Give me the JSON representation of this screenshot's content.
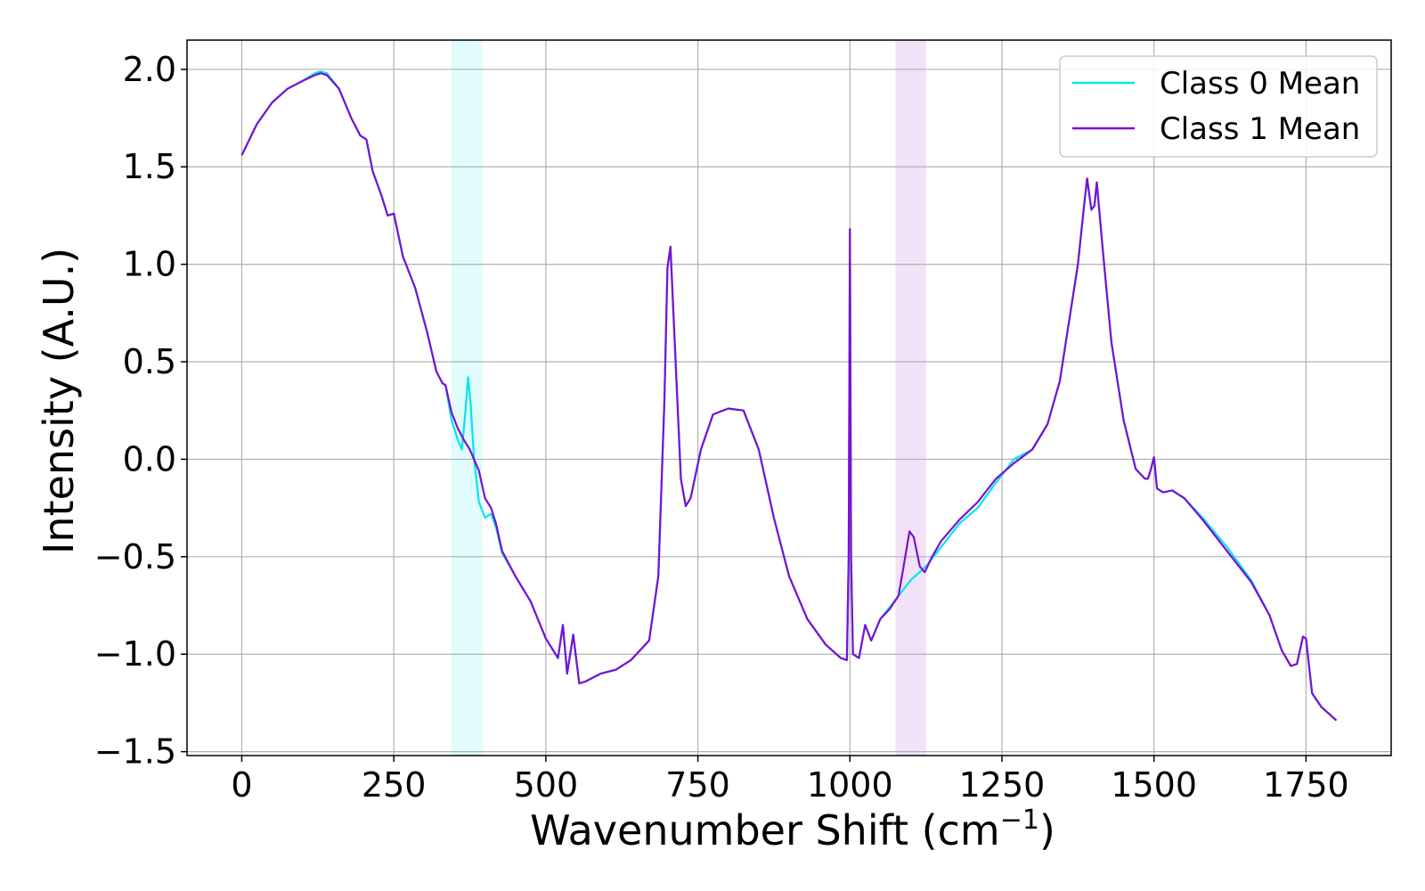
{
  "chart_data": {
    "type": "line",
    "title": "",
    "xlabel": "Wavenumber Shift (cm",
    "xlabel_sup": "−1",
    "xlabel_close": ")",
    "ylabel": "Intensity (A.U.)",
    "xlim": [
      -90,
      1890
    ],
    "ylim": [
      -1.52,
      2.15
    ],
    "xticks": [
      0,
      250,
      500,
      750,
      1000,
      1250,
      1500,
      1750
    ],
    "xtick_labels": [
      "0",
      "250",
      "500",
      "750",
      "1000",
      "1250",
      "1500",
      "1750"
    ],
    "yticks": [
      -1.5,
      -1.0,
      -0.5,
      0.0,
      0.5,
      1.0,
      1.5,
      2.0
    ],
    "ytick_labels": [
      "−1.5",
      "−1.0",
      "−0.5",
      "0.0",
      "0.5",
      "1.0",
      "1.5",
      "2.0"
    ],
    "grid": true,
    "legend_position": "top-right",
    "highlight_bands": [
      {
        "x0": 345,
        "x1": 395,
        "color": "#e0fcfc"
      },
      {
        "x0": 1075,
        "x1": 1125,
        "color": "#f1e2f8"
      }
    ],
    "series": [
      {
        "name": "Class 0 Mean",
        "color": "#00e5ee",
        "points": [
          [
            0,
            1.56
          ],
          [
            25,
            1.72
          ],
          [
            50,
            1.83
          ],
          [
            75,
            1.9
          ],
          [
            100,
            1.94
          ],
          [
            120,
            1.98
          ],
          [
            130,
            1.99
          ],
          [
            140,
            1.98
          ],
          [
            160,
            1.9
          ],
          [
            180,
            1.75
          ],
          [
            195,
            1.66
          ],
          [
            205,
            1.64
          ],
          [
            215,
            1.48
          ],
          [
            230,
            1.35
          ],
          [
            240,
            1.25
          ],
          [
            250,
            1.26
          ],
          [
            265,
            1.04
          ],
          [
            285,
            0.88
          ],
          [
            305,
            0.65
          ],
          [
            320,
            0.45
          ],
          [
            330,
            0.39
          ],
          [
            335,
            0.38
          ],
          [
            345,
            0.2
          ],
          [
            355,
            0.1
          ],
          [
            362,
            0.05
          ],
          [
            368,
            0.25
          ],
          [
            372,
            0.42
          ],
          [
            376,
            0.3
          ],
          [
            382,
            0.0
          ],
          [
            390,
            -0.22
          ],
          [
            400,
            -0.3
          ],
          [
            410,
            -0.28
          ],
          [
            418,
            -0.35
          ],
          [
            428,
            -0.48
          ],
          [
            450,
            -0.6
          ],
          [
            475,
            -0.73
          ],
          [
            500,
            -0.92
          ],
          [
            520,
            -1.02
          ],
          [
            528,
            -0.85
          ],
          [
            535,
            -1.1
          ],
          [
            545,
            -0.9
          ],
          [
            555,
            -1.15
          ],
          [
            565,
            -1.14
          ],
          [
            590,
            -1.1
          ],
          [
            615,
            -1.08
          ],
          [
            640,
            -1.03
          ],
          [
            670,
            -0.93
          ],
          [
            685,
            -0.6
          ],
          [
            695,
            0.3
          ],
          [
            700,
            0.98
          ],
          [
            705,
            1.09
          ],
          [
            712,
            0.6
          ],
          [
            722,
            -0.1
          ],
          [
            730,
            -0.24
          ],
          [
            738,
            -0.2
          ],
          [
            755,
            0.05
          ],
          [
            775,
            0.23
          ],
          [
            800,
            0.26
          ],
          [
            825,
            0.25
          ],
          [
            850,
            0.05
          ],
          [
            875,
            -0.3
          ],
          [
            900,
            -0.6
          ],
          [
            930,
            -0.82
          ],
          [
            960,
            -0.95
          ],
          [
            985,
            -1.02
          ],
          [
            995,
            -1.03
          ],
          [
            998,
            -0.5
          ],
          [
            1000,
            1.18
          ],
          [
            1002,
            -0.5
          ],
          [
            1005,
            -1.0
          ],
          [
            1015,
            -1.02
          ],
          [
            1025,
            -0.85
          ],
          [
            1035,
            -0.93
          ],
          [
            1050,
            -0.82
          ],
          [
            1075,
            -0.72
          ],
          [
            1100,
            -0.62
          ],
          [
            1125,
            -0.55
          ],
          [
            1150,
            -0.45
          ],
          [
            1180,
            -0.33
          ],
          [
            1210,
            -0.25
          ],
          [
            1240,
            -0.12
          ],
          [
            1270,
            0.0
          ],
          [
            1300,
            0.05
          ],
          [
            1325,
            0.18
          ],
          [
            1345,
            0.4
          ],
          [
            1360,
            0.7
          ],
          [
            1375,
            1.0
          ],
          [
            1385,
            1.3
          ],
          [
            1390,
            1.44
          ],
          [
            1397,
            1.28
          ],
          [
            1402,
            1.3
          ],
          [
            1406,
            1.42
          ],
          [
            1415,
            1.1
          ],
          [
            1430,
            0.6
          ],
          [
            1450,
            0.2
          ],
          [
            1470,
            -0.05
          ],
          [
            1485,
            -0.1
          ],
          [
            1490,
            -0.1
          ],
          [
            1495,
            -0.05
          ],
          [
            1500,
            0.01
          ],
          [
            1505,
            -0.15
          ],
          [
            1515,
            -0.17
          ],
          [
            1530,
            -0.16
          ],
          [
            1550,
            -0.2
          ],
          [
            1580,
            -0.3
          ],
          [
            1620,
            -0.45
          ],
          [
            1660,
            -0.62
          ],
          [
            1690,
            -0.8
          ],
          [
            1710,
            -0.98
          ],
          [
            1725,
            -1.06
          ],
          [
            1735,
            -1.05
          ],
          [
            1745,
            -0.91
          ],
          [
            1750,
            -0.92
          ],
          [
            1760,
            -1.2
          ],
          [
            1775,
            -1.27
          ],
          [
            1800,
            -1.34
          ]
        ]
      },
      {
        "name": "Class 1 Mean",
        "color": "#7b0fd6",
        "points": [
          [
            0,
            1.56
          ],
          [
            25,
            1.72
          ],
          [
            50,
            1.83
          ],
          [
            75,
            1.9
          ],
          [
            100,
            1.94
          ],
          [
            120,
            1.97
          ],
          [
            130,
            1.98
          ],
          [
            140,
            1.97
          ],
          [
            160,
            1.9
          ],
          [
            180,
            1.75
          ],
          [
            195,
            1.66
          ],
          [
            205,
            1.64
          ],
          [
            215,
            1.48
          ],
          [
            230,
            1.35
          ],
          [
            240,
            1.25
          ],
          [
            250,
            1.26
          ],
          [
            265,
            1.04
          ],
          [
            285,
            0.88
          ],
          [
            305,
            0.65
          ],
          [
            320,
            0.45
          ],
          [
            330,
            0.39
          ],
          [
            335,
            0.38
          ],
          [
            345,
            0.24
          ],
          [
            355,
            0.16
          ],
          [
            365,
            0.1
          ],
          [
            375,
            0.05
          ],
          [
            390,
            -0.06
          ],
          [
            400,
            -0.2
          ],
          [
            410,
            -0.25
          ],
          [
            418,
            -0.33
          ],
          [
            428,
            -0.47
          ],
          [
            450,
            -0.6
          ],
          [
            475,
            -0.73
          ],
          [
            500,
            -0.92
          ],
          [
            520,
            -1.02
          ],
          [
            528,
            -0.85
          ],
          [
            535,
            -1.1
          ],
          [
            545,
            -0.9
          ],
          [
            555,
            -1.15
          ],
          [
            565,
            -1.14
          ],
          [
            590,
            -1.1
          ],
          [
            615,
            -1.08
          ],
          [
            640,
            -1.03
          ],
          [
            670,
            -0.93
          ],
          [
            685,
            -0.6
          ],
          [
            695,
            0.3
          ],
          [
            700,
            0.98
          ],
          [
            705,
            1.09
          ],
          [
            712,
            0.6
          ],
          [
            722,
            -0.1
          ],
          [
            730,
            -0.24
          ],
          [
            738,
            -0.2
          ],
          [
            755,
            0.05
          ],
          [
            775,
            0.23
          ],
          [
            800,
            0.26
          ],
          [
            825,
            0.25
          ],
          [
            850,
            0.05
          ],
          [
            875,
            -0.3
          ],
          [
            900,
            -0.6
          ],
          [
            930,
            -0.82
          ],
          [
            960,
            -0.95
          ],
          [
            985,
            -1.02
          ],
          [
            995,
            -1.03
          ],
          [
            998,
            -0.5
          ],
          [
            1000,
            1.18
          ],
          [
            1002,
            -0.5
          ],
          [
            1005,
            -1.0
          ],
          [
            1015,
            -1.02
          ],
          [
            1025,
            -0.85
          ],
          [
            1035,
            -0.93
          ],
          [
            1050,
            -0.82
          ],
          [
            1065,
            -0.77
          ],
          [
            1080,
            -0.7
          ],
          [
            1090,
            -0.52
          ],
          [
            1098,
            -0.37
          ],
          [
            1105,
            -0.4
          ],
          [
            1115,
            -0.55
          ],
          [
            1123,
            -0.58
          ],
          [
            1135,
            -0.5
          ],
          [
            1150,
            -0.42
          ],
          [
            1180,
            -0.31
          ],
          [
            1210,
            -0.22
          ],
          [
            1240,
            -0.1
          ],
          [
            1270,
            -0.02
          ],
          [
            1300,
            0.05
          ],
          [
            1325,
            0.18
          ],
          [
            1345,
            0.4
          ],
          [
            1360,
            0.7
          ],
          [
            1375,
            1.0
          ],
          [
            1385,
            1.3
          ],
          [
            1390,
            1.44
          ],
          [
            1397,
            1.28
          ],
          [
            1402,
            1.3
          ],
          [
            1406,
            1.42
          ],
          [
            1415,
            1.1
          ],
          [
            1430,
            0.6
          ],
          [
            1450,
            0.2
          ],
          [
            1470,
            -0.05
          ],
          [
            1485,
            -0.1
          ],
          [
            1490,
            -0.1
          ],
          [
            1495,
            -0.05
          ],
          [
            1500,
            0.01
          ],
          [
            1505,
            -0.15
          ],
          [
            1515,
            -0.17
          ],
          [
            1530,
            -0.16
          ],
          [
            1550,
            -0.2
          ],
          [
            1580,
            -0.31
          ],
          [
            1620,
            -0.47
          ],
          [
            1660,
            -0.63
          ],
          [
            1690,
            -0.8
          ],
          [
            1710,
            -0.98
          ],
          [
            1725,
            -1.06
          ],
          [
            1735,
            -1.05
          ],
          [
            1745,
            -0.91
          ],
          [
            1750,
            -0.92
          ],
          [
            1760,
            -1.2
          ],
          [
            1775,
            -1.27
          ],
          [
            1800,
            -1.34
          ]
        ]
      }
    ]
  }
}
